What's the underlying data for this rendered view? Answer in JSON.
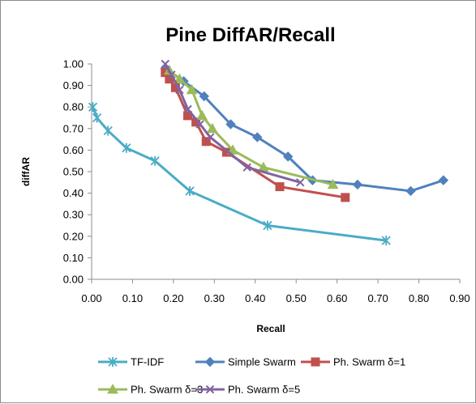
{
  "chart_data": {
    "type": "line",
    "title": "Pine DiffAR/Recall",
    "xlabel": "Recall",
    "ylabel": "diffAR",
    "xlim": [
      0,
      0.9
    ],
    "ylim": [
      0,
      1.0
    ],
    "x_ticks": [
      "0.00",
      "0.10",
      "0.20",
      "0.30",
      "0.40",
      "0.50",
      "0.60",
      "0.70",
      "0.80",
      "0.90"
    ],
    "y_ticks": [
      "0.00",
      "0.10",
      "0.20",
      "0.30",
      "0.40",
      "0.50",
      "0.60",
      "0.70",
      "0.80",
      "0.90",
      "1.00"
    ],
    "grid": false,
    "legend_position": "bottom",
    "series": [
      {
        "name": "TF-IDF",
        "color": "#4BACC6",
        "marker": "asterisk",
        "points": [
          [
            0.003,
            0.8
          ],
          [
            0.013,
            0.75
          ],
          [
            0.04,
            0.69
          ],
          [
            0.085,
            0.61
          ],
          [
            0.155,
            0.55
          ],
          [
            0.24,
            0.41
          ],
          [
            0.43,
            0.25
          ],
          [
            0.72,
            0.18
          ]
        ]
      },
      {
        "name": "Simple Swarm",
        "color": "#4F81BD",
        "marker": "diamond",
        "points": [
          [
            0.18,
            0.98
          ],
          [
            0.225,
            0.92
          ],
          [
            0.275,
            0.85
          ],
          [
            0.34,
            0.72
          ],
          [
            0.405,
            0.66
          ],
          [
            0.48,
            0.57
          ],
          [
            0.54,
            0.46
          ],
          [
            0.65,
            0.44
          ],
          [
            0.78,
            0.41
          ],
          [
            0.86,
            0.46
          ]
        ]
      },
      {
        "name": "Ph. Swarm δ=1",
        "color": "#C0504D",
        "marker": "square",
        "points": [
          [
            0.18,
            0.96
          ],
          [
            0.19,
            0.93
          ],
          [
            0.205,
            0.89
          ],
          [
            0.235,
            0.76
          ],
          [
            0.255,
            0.73
          ],
          [
            0.28,
            0.64
          ],
          [
            0.33,
            0.59
          ],
          [
            0.46,
            0.43
          ],
          [
            0.62,
            0.38
          ]
        ]
      },
      {
        "name": "Ph. Swarm δ=3",
        "color": "#9BBB59",
        "marker": "triangle",
        "points": [
          [
            0.19,
            0.97
          ],
          [
            0.215,
            0.93
          ],
          [
            0.245,
            0.88
          ],
          [
            0.27,
            0.76
          ],
          [
            0.295,
            0.7
          ],
          [
            0.345,
            0.6
          ],
          [
            0.42,
            0.52
          ],
          [
            0.59,
            0.44
          ]
        ]
      },
      {
        "name": "Ph. Swarm δ=5",
        "color": "#8064A2",
        "marker": "x",
        "points": [
          [
            0.18,
            1.0
          ],
          [
            0.195,
            0.95
          ],
          [
            0.215,
            0.88
          ],
          [
            0.235,
            0.79
          ],
          [
            0.265,
            0.72
          ],
          [
            0.29,
            0.66
          ],
          [
            0.38,
            0.52
          ],
          [
            0.51,
            0.45
          ]
        ]
      }
    ]
  }
}
